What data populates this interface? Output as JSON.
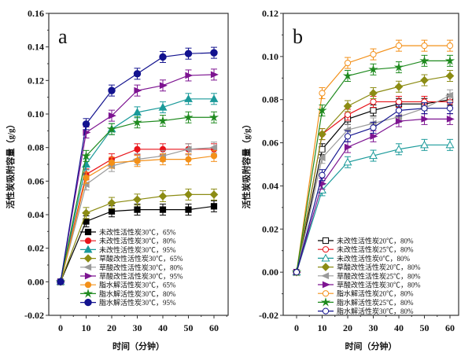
{
  "chart_data": [
    {
      "type": "line",
      "panel_label": "a",
      "xlabel": "时间（分钟）",
      "ylabel": "活性炭吸附容量（g/g）",
      "xlim": [
        -8,
        66
      ],
      "ylim": [
        -0.02,
        0.16
      ],
      "xticks": [
        0,
        10,
        20,
        30,
        40,
        50,
        60
      ],
      "yticks": [
        "-0.02",
        "0.00",
        "0.02",
        "0.04",
        "0.06",
        "0.08",
        "0.10",
        "0.12",
        "0.14",
        "0.16"
      ],
      "legend_position": "bottom-center",
      "grid": false,
      "x": [
        0,
        10,
        20,
        30,
        40,
        50,
        60
      ],
      "series": [
        {
          "name": "未改性活性炭30℃，65%",
          "color": "#000000",
          "marker": "square",
          "values": [
            0,
            0.036,
            0.042,
            0.043,
            0.043,
            0.043,
            0.045
          ]
        },
        {
          "name": "未改性活性炭30℃，80%",
          "color": "#e8141b",
          "marker": "circle",
          "values": [
            0,
            0.064,
            0.073,
            0.079,
            0.079,
            0.079,
            0.079
          ]
        },
        {
          "name": "未改性活性炭30℃，95%",
          "color": "#1a9a9a",
          "marker": "triangle-up",
          "values": [
            0,
            0.07,
            0.091,
            0.101,
            0.104,
            0.109,
            0.109
          ]
        },
        {
          "name": "草酸改性活性炭30℃，65%",
          "color": "#8c8c14",
          "marker": "diamond",
          "values": [
            0,
            0.041,
            0.047,
            0.049,
            0.051,
            0.052,
            0.052
          ]
        },
        {
          "name": "草酸改性活性炭30℃，80%",
          "color": "#9a9a9a",
          "marker": "triangle-left",
          "values": [
            0,
            0.058,
            0.069,
            0.073,
            0.075,
            0.079,
            0.08
          ]
        },
        {
          "name": "草酸改性活性炭30℃，95%",
          "color": "#7d1491",
          "marker": "triangle-right",
          "values": [
            0,
            0.089,
            0.099,
            0.114,
            0.117,
            0.123,
            0.1235
          ]
        },
        {
          "name": "脂水解活性炭30℃，65%",
          "color": "#f39019",
          "marker": "circle",
          "values": [
            0,
            0.062,
            0.071,
            0.072,
            0.073,
            0.073,
            0.075
          ]
        },
        {
          "name": "脂水解活性炭30℃，80%",
          "color": "#1f8a1f",
          "marker": "star",
          "values": [
            0,
            0.075,
            0.091,
            0.095,
            0.096,
            0.098,
            0.098
          ]
        },
        {
          "name": "脂水解活性炭30℃，95%",
          "color": "#13138f",
          "marker": "hexagon",
          "values": [
            0,
            0.094,
            0.114,
            0.124,
            0.134,
            0.136,
            0.1365
          ]
        }
      ]
    },
    {
      "type": "line",
      "panel_label": "b",
      "xlabel": "时间（分钟）",
      "ylabel": "活性炭吸附容量（g/g）",
      "xlim": [
        -8,
        62
      ],
      "ylim": [
        -0.02,
        0.12
      ],
      "xticks": [
        0,
        10,
        20,
        30,
        40,
        50,
        60
      ],
      "yticks": [
        "-0.02",
        "0.00",
        "0.02",
        "0.04",
        "0.06",
        "0.08",
        "0.10",
        "0.12"
      ],
      "legend_position": "bottom-center",
      "grid": false,
      "x": [
        0,
        10,
        20,
        30,
        40,
        50,
        60
      ],
      "series": [
        {
          "name": "未改性活性炭20℃，80%",
          "color": "#000000",
          "marker": "square-open",
          "values": [
            0,
            0.057,
            0.071,
            0.075,
            0.078,
            0.078,
            0.08
          ]
        },
        {
          "name": "未改性活性炭25℃，80%",
          "color": "#e8141b",
          "marker": "circle-open",
          "values": [
            0,
            0.064,
            0.073,
            0.079,
            0.079,
            0.079,
            0.079
          ]
        },
        {
          "name": "未改性活性炭0℃，80%",
          "color": "#1a9a9a",
          "marker": "triangle-open",
          "values": [
            0,
            0.038,
            0.051,
            0.054,
            0.057,
            0.059,
            0.059
          ]
        },
        {
          "name": "草酸改性活性炭20℃，80%",
          "color": "#8c8c14",
          "marker": "diamond",
          "values": [
            0,
            0.064,
            0.077,
            0.083,
            0.086,
            0.089,
            0.091
          ]
        },
        {
          "name": "草酸改性活性炭25℃，80%",
          "color": "#9a9a9a",
          "marker": "triangle-left",
          "values": [
            0,
            0.053,
            0.066,
            0.069,
            0.072,
            0.076,
            0.082
          ]
        },
        {
          "name": "草酸改性活性炭30℃，80%",
          "color": "#7d1491",
          "marker": "triangle-right",
          "values": [
            0,
            0.041,
            0.058,
            0.063,
            0.07,
            0.071,
            0.071
          ]
        },
        {
          "name": "脂水解活性炭20℃，80%",
          "color": "#f39019",
          "marker": "circle-open",
          "values": [
            0,
            0.083,
            0.097,
            0.101,
            0.105,
            0.105,
            0.105
          ]
        },
        {
          "name": "脂水解活性炭25℃，80%",
          "color": "#1f8a1f",
          "marker": "star",
          "values": [
            0,
            0.075,
            0.091,
            0.094,
            0.095,
            0.098,
            0.098
          ]
        },
        {
          "name": "脂水解活性炭30℃，80%",
          "color": "#13138f",
          "marker": "circle-open",
          "values": [
            0,
            0.045,
            0.063,
            0.067,
            0.075,
            0.076,
            0.076
          ]
        }
      ]
    }
  ]
}
